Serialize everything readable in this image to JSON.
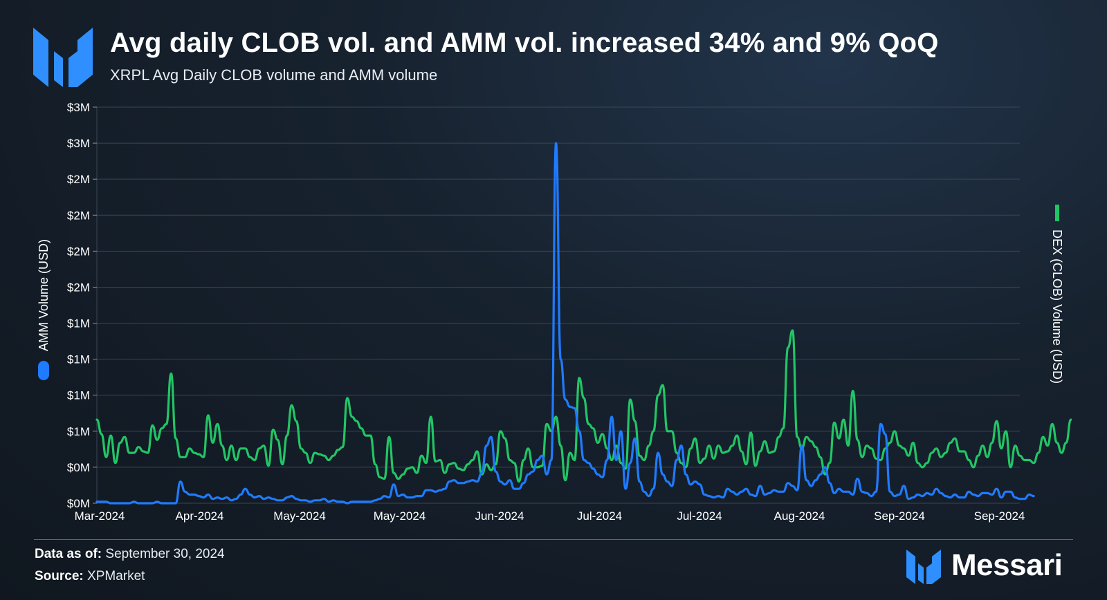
{
  "header": {
    "title": "Avg daily CLOB vol. and AMM vol. increased 34% and 9% QoQ",
    "subtitle": "XRPL Avg Daily CLOB volume and AMM volume"
  },
  "footer": {
    "data_as_of_label": "Data as of:",
    "data_as_of_value": "September 30, 2024",
    "source_label": "Source:",
    "source_value": "XPMarket"
  },
  "brand": {
    "name": "Messari",
    "logo_icon": "messari-logo-icon"
  },
  "colors": {
    "amm": "#1f7bff",
    "clob": "#22c566",
    "grid": "#3a4654",
    "background": "#141d27"
  },
  "chart_data": {
    "type": "line",
    "title": "XRPL Avg Daily CLOB volume and AMM volume",
    "x_tick_labels": [
      "Mar-2024",
      "Apr-2024",
      "May-2024",
      "May-2024",
      "Jun-2024",
      "Jul-2024",
      "Jul-2024",
      "Aug-2024",
      "Sep-2024",
      "Sep-2024"
    ],
    "y_tick_labels": [
      "$0M",
      "$0M",
      "$1M",
      "$1M",
      "$1M",
      "$1M",
      "$2M",
      "$2M",
      "$2M",
      "$2M",
      "$3M",
      "$3M"
    ],
    "left_axis_label": "AMM Volume (USD)",
    "right_axis_label": "DEX (CLOB) Volume (USD)",
    "ylim": [
      0,
      2.75
    ],
    "grid": true,
    "x_points": 200,
    "series": [
      {
        "name": "AMM Volume (USD)",
        "axis": "left",
        "color": "#1f7bff",
        "values": [
          0.01,
          0.01,
          0.01,
          0.0,
          0.0,
          0.0,
          0.0,
          0.0,
          0.01,
          0.0,
          0.0,
          0.0,
          0.0,
          0.01,
          0.0,
          0.0,
          0.0,
          0.0,
          0.15,
          0.08,
          0.06,
          0.06,
          0.05,
          0.04,
          0.06,
          0.03,
          0.04,
          0.03,
          0.04,
          0.02,
          0.03,
          0.06,
          0.1,
          0.06,
          0.04,
          0.05,
          0.03,
          0.04,
          0.03,
          0.02,
          0.02,
          0.04,
          0.05,
          0.03,
          0.02,
          0.02,
          0.01,
          0.02,
          0.02,
          0.03,
          0.01,
          0.02,
          0.01,
          0.01,
          0.0,
          0.01,
          0.01,
          0.01,
          0.01,
          0.01,
          0.02,
          0.03,
          0.05,
          0.04,
          0.13,
          0.05,
          0.06,
          0.04,
          0.04,
          0.05,
          0.05,
          0.09,
          0.09,
          0.08,
          0.09,
          0.1,
          0.15,
          0.16,
          0.14,
          0.14,
          0.15,
          0.16,
          0.15,
          0.21,
          0.4,
          0.46,
          0.22,
          0.15,
          0.13,
          0.16,
          0.1,
          0.1,
          0.14,
          0.2,
          0.22,
          0.3,
          0.33,
          0.2,
          0.3,
          2.5,
          1.0,
          0.72,
          0.67,
          0.66,
          0.5,
          0.3,
          0.28,
          0.24,
          0.2,
          0.18,
          0.3,
          0.6,
          0.3,
          0.5,
          0.1,
          0.28,
          0.45,
          0.15,
          0.08,
          0.05,
          0.1,
          0.35,
          0.2,
          0.15,
          0.12,
          0.3,
          0.4,
          0.2,
          0.13,
          0.15,
          0.13,
          0.06,
          0.05,
          0.04,
          0.05,
          0.04,
          0.1,
          0.08,
          0.06,
          0.08,
          0.1,
          0.06,
          0.05,
          0.12,
          0.06,
          0.07,
          0.09,
          0.08,
          0.08,
          0.14,
          0.12,
          0.09,
          0.4,
          0.16,
          0.12,
          0.16,
          0.2,
          0.25,
          0.14,
          0.07,
          0.1,
          0.08,
          0.08,
          0.06,
          0.17,
          0.08,
          0.07,
          0.05,
          0.08,
          0.55,
          0.48,
          0.08,
          0.05,
          0.06,
          0.12,
          0.03,
          0.04,
          0.06,
          0.05,
          0.07,
          0.06,
          0.1,
          0.07,
          0.05,
          0.04,
          0.06,
          0.04,
          0.04,
          0.08,
          0.06,
          0.05,
          0.07,
          0.07,
          0.06,
          0.1,
          0.04,
          0.08,
          0.08,
          0.04,
          0.03,
          0.03,
          0.06,
          0.05
        ]
      },
      {
        "name": "DEX (CLOB) Volume (USD)",
        "axis": "right",
        "color": "#22c566",
        "values": [
          0.58,
          0.48,
          0.32,
          0.47,
          0.28,
          0.42,
          0.46,
          0.35,
          0.35,
          0.39,
          0.36,
          0.35,
          0.54,
          0.44,
          0.52,
          0.55,
          0.9,
          0.45,
          0.32,
          0.32,
          0.38,
          0.35,
          0.34,
          0.32,
          0.61,
          0.42,
          0.55,
          0.4,
          0.3,
          0.4,
          0.3,
          0.38,
          0.38,
          0.32,
          0.3,
          0.38,
          0.4,
          0.26,
          0.51,
          0.44,
          0.27,
          0.47,
          0.68,
          0.57,
          0.38,
          0.35,
          0.28,
          0.35,
          0.34,
          0.33,
          0.3,
          0.33,
          0.37,
          0.39,
          0.73,
          0.6,
          0.57,
          0.52,
          0.47,
          0.47,
          0.27,
          0.18,
          0.17,
          0.46,
          0.21,
          0.17,
          0.2,
          0.24,
          0.25,
          0.21,
          0.33,
          0.28,
          0.6,
          0.29,
          0.3,
          0.21,
          0.27,
          0.28,
          0.24,
          0.23,
          0.27,
          0.3,
          0.36,
          0.2,
          0.27,
          0.23,
          0.27,
          0.5,
          0.45,
          0.3,
          0.28,
          0.15,
          0.3,
          0.38,
          0.25,
          0.25,
          0.26,
          0.55,
          0.5,
          0.6,
          0.4,
          0.16,
          0.35,
          0.3,
          0.87,
          0.73,
          0.55,
          0.52,
          0.42,
          0.48,
          0.38,
          0.3,
          0.4,
          0.28,
          0.24,
          0.72,
          0.57,
          0.33,
          0.3,
          0.4,
          0.5,
          0.75,
          0.82,
          0.5,
          0.5,
          0.35,
          0.28,
          0.25,
          0.38,
          0.45,
          0.28,
          0.31,
          0.4,
          0.31,
          0.4,
          0.35,
          0.36,
          0.4,
          0.47,
          0.36,
          0.27,
          0.49,
          0.26,
          0.36,
          0.43,
          0.35,
          0.36,
          0.46,
          0.52,
          1.08,
          1.2,
          0.46,
          0.38,
          0.46,
          0.43,
          0.39,
          0.32,
          0.2,
          0.28,
          0.56,
          0.45,
          0.58,
          0.4,
          0.78,
          0.44,
          0.32,
          0.4,
          0.38,
          0.31,
          0.3,
          0.38,
          0.42,
          0.5,
          0.4,
          0.38,
          0.33,
          0.42,
          0.28,
          0.25,
          0.28,
          0.35,
          0.38,
          0.32,
          0.35,
          0.42,
          0.45,
          0.36,
          0.36,
          0.3,
          0.25,
          0.33,
          0.4,
          0.32,
          0.42,
          0.57,
          0.38,
          0.5,
          0.25,
          0.4,
          0.33,
          0.3,
          0.3,
          0.28,
          0.35,
          0.46,
          0.4,
          0.55,
          0.42,
          0.35,
          0.42,
          0.58
        ]
      }
    ]
  }
}
